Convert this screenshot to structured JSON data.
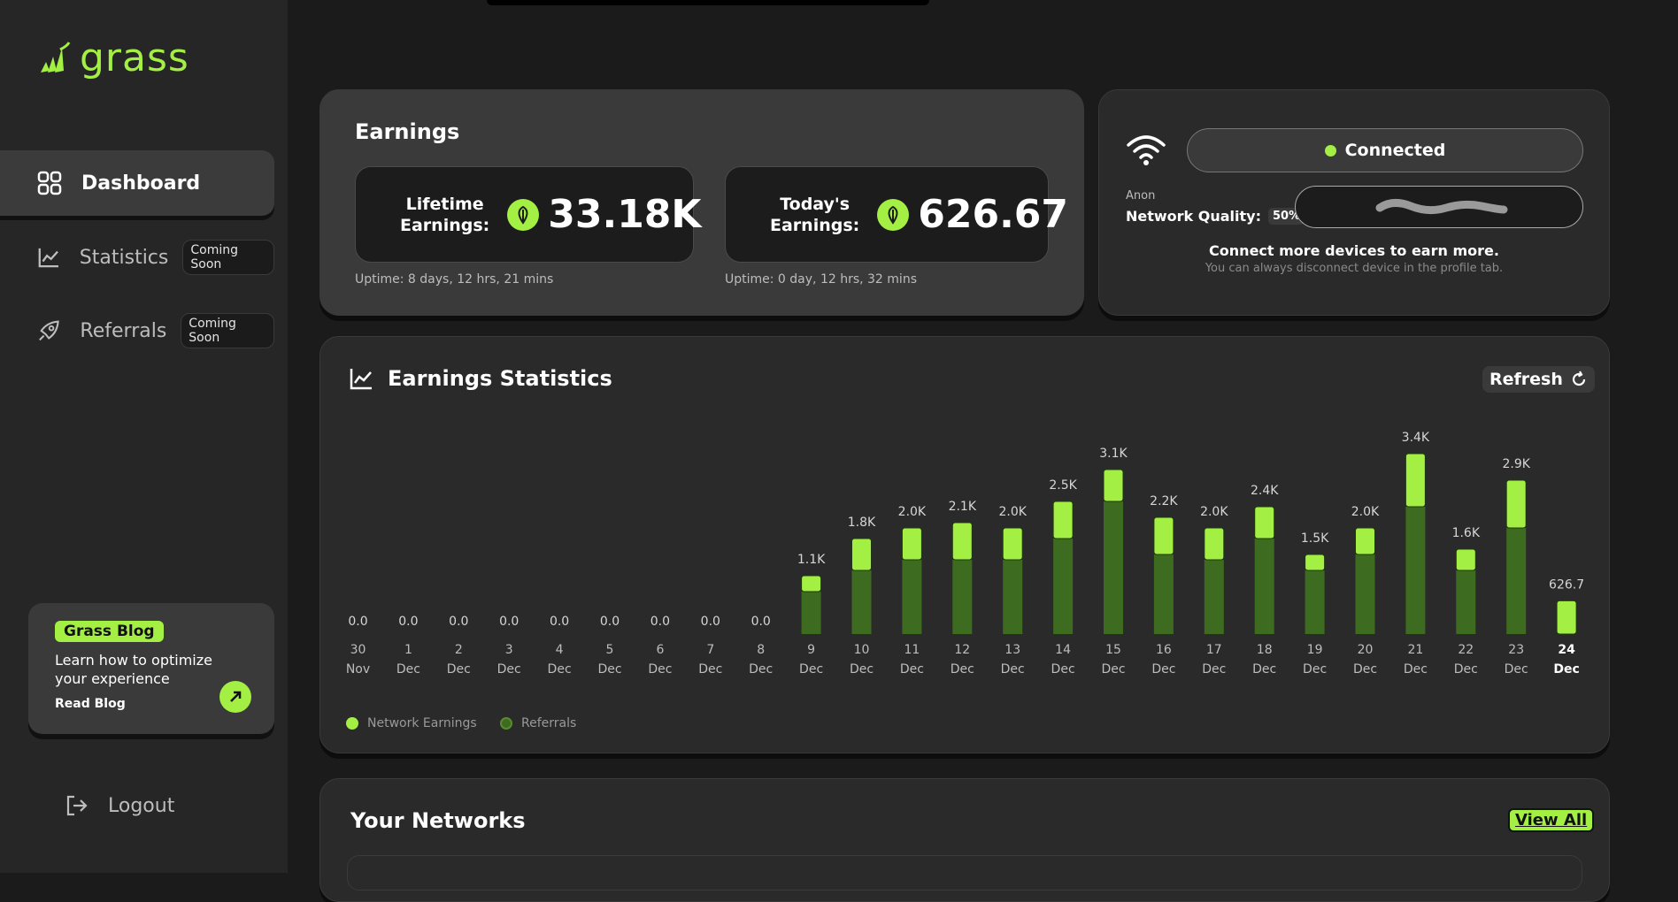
{
  "brand": {
    "name": "grass"
  },
  "sidebar": {
    "items": [
      {
        "label": "Dashboard",
        "icon": "grid-icon",
        "badge": ""
      },
      {
        "label": "Statistics",
        "icon": "line-chart-icon",
        "badge": "Coming Soon"
      },
      {
        "label": "Referrals",
        "icon": "rocket-icon",
        "badge": "Coming Soon"
      }
    ],
    "blog": {
      "tag": "Grass Blog",
      "text": "Learn how to optimize your experience",
      "link": "Read Blog"
    },
    "logout": "Logout"
  },
  "earnings": {
    "title": "Earnings",
    "lifetime": {
      "label_line1": "Lifetime",
      "label_line2": "Earnings:",
      "value": "33.18K",
      "uptime": "Uptime: 8 days, 12 hrs, 21 mins"
    },
    "today": {
      "label_line1": "Today's",
      "label_line2": "Earnings:",
      "value": "626.67",
      "uptime": "Uptime: 0 day, 12 hrs, 32 mins"
    }
  },
  "connection": {
    "status": "Connected",
    "user": "Anon",
    "quality_label": "Network Quality:",
    "quality_value": "50%",
    "cta": "Connect more devices to earn more.",
    "sub": "You can always disconnect device in the profile tab."
  },
  "stats": {
    "title": "Earnings Statistics",
    "refresh": "Refresh",
    "legend": [
      {
        "label": "Network Earnings",
        "color": "#a3ef44"
      },
      {
        "label": "Referrals",
        "color": "#3d6b1f"
      }
    ]
  },
  "chart_data": {
    "type": "bar",
    "stacked": true,
    "categories": [
      "30 Nov",
      "1 Dec",
      "2 Dec",
      "3 Dec",
      "4 Dec",
      "5 Dec",
      "6 Dec",
      "7 Dec",
      "8 Dec",
      "9 Dec",
      "10 Dec",
      "11 Dec",
      "12 Dec",
      "13 Dec",
      "14 Dec",
      "15 Dec",
      "16 Dec",
      "17 Dec",
      "18 Dec",
      "19 Dec",
      "20 Dec",
      "21 Dec",
      "22 Dec",
      "23 Dec",
      "24 Dec"
    ],
    "x_top": [
      "30",
      "1",
      "2",
      "3",
      "4",
      "5",
      "6",
      "7",
      "8",
      "9",
      "10",
      "11",
      "12",
      "13",
      "14",
      "15",
      "16",
      "17",
      "18",
      "19",
      "20",
      "21",
      "22",
      "23",
      "24"
    ],
    "x_bottom": [
      "Nov",
      "Dec",
      "Dec",
      "Dec",
      "Dec",
      "Dec",
      "Dec",
      "Dec",
      "Dec",
      "Dec",
      "Dec",
      "Dec",
      "Dec",
      "Dec",
      "Dec",
      "Dec",
      "Dec",
      "Dec",
      "Dec",
      "Dec",
      "Dec",
      "Dec",
      "Dec",
      "Dec",
      "Dec"
    ],
    "totals_labels": [
      "0.0",
      "0.0",
      "0.0",
      "0.0",
      "0.0",
      "0.0",
      "0.0",
      "0.0",
      "0.0",
      "1.1K",
      "1.8K",
      "2.0K",
      "2.1K",
      "2.0K",
      "2.5K",
      "3.1K",
      "2.2K",
      "2.0K",
      "2.4K",
      "1.5K",
      "2.0K",
      "3.4K",
      "1.6K",
      "2.9K",
      "626.7"
    ],
    "totals": [
      0,
      0,
      0,
      0,
      0,
      0,
      0,
      0,
      0,
      1100,
      1800,
      2000,
      2100,
      2000,
      2500,
      3100,
      2200,
      2000,
      2400,
      1500,
      2000,
      3400,
      1600,
      2900,
      626.7
    ],
    "series": [
      {
        "name": "Network Earnings",
        "values": [
          0,
          0,
          0,
          0,
          0,
          0,
          0,
          0,
          0,
          300,
          600,
          600,
          700,
          600,
          700,
          600,
          700,
          600,
          600,
          300,
          500,
          1000,
          400,
          900,
          626.7
        ]
      },
      {
        "name": "Referrals",
        "values": [
          0,
          0,
          0,
          0,
          0,
          0,
          0,
          0,
          0,
          800,
          1200,
          1400,
          1400,
          1400,
          1800,
          2500,
          1500,
          1400,
          1800,
          1200,
          1500,
          2400,
          1200,
          2000,
          0
        ]
      }
    ],
    "ylim": [
      0,
      3500
    ],
    "highlight_last": true
  },
  "networks": {
    "title": "Your Networks",
    "view_all": "View All"
  }
}
